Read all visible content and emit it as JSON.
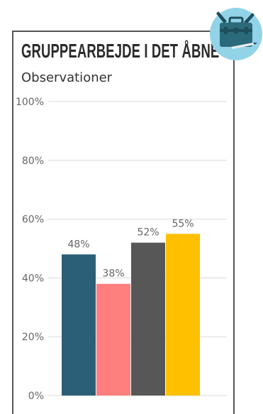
{
  "header": {
    "title": "GRUPPEARBEJDE I DET ÅBNE",
    "subtitle": "Observationer"
  },
  "badge": {
    "icon": "briefcase-icon",
    "circle_color": "#92d3e8",
    "case_color": "#2b6a7b"
  },
  "chart_data": {
    "type": "bar",
    "title": "",
    "xlabel": "",
    "ylabel": "",
    "ylim": [
      0,
      100
    ],
    "yticks": [
      "0%",
      "20%",
      "40%",
      "60%",
      "80%",
      "100%"
    ],
    "grid": true,
    "categories": [
      "",
      "",
      "",
      ""
    ],
    "values": [
      48,
      38,
      52,
      55
    ],
    "value_labels": [
      "48%",
      "38%",
      "52%",
      "55%"
    ],
    "colors": [
      "#2b5f78",
      "#ff7f7f",
      "#575757",
      "#ffc000"
    ]
  }
}
